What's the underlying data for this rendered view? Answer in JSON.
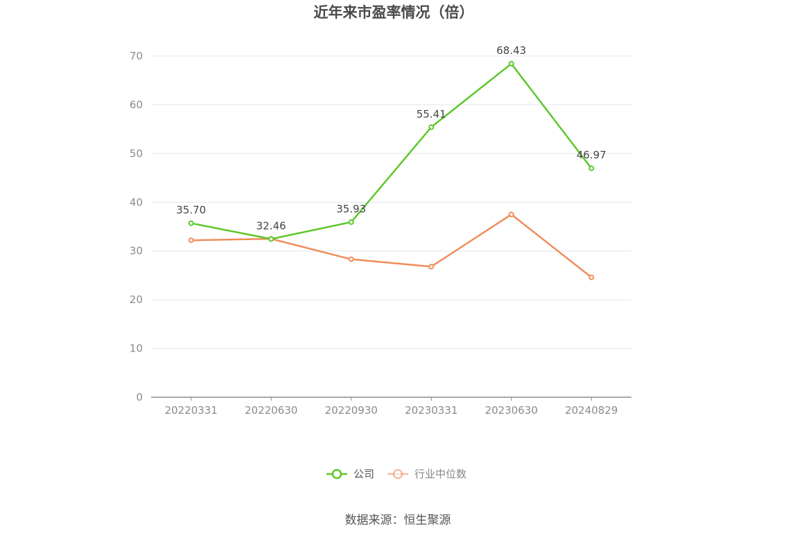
{
  "colors": {
    "company": "#5cc72a",
    "industry": "#f08c5a",
    "grid": "#e3e6ee",
    "axis": "#8c8c8c",
    "legend_company_text": "#555555",
    "legend_industry_text": "#888888"
  },
  "source": "数据来源：恒生聚源",
  "chart_data": {
    "type": "line",
    "title": "近年来市盈率情况（倍）",
    "xlabel": "",
    "ylabel": "",
    "ylim": [
      0,
      70
    ],
    "yticks": [
      0,
      10,
      20,
      30,
      40,
      50,
      60,
      70
    ],
    "categories": [
      "20220331",
      "20220630",
      "20220930",
      "20230331",
      "20230630",
      "20240829"
    ],
    "grid": true,
    "legend": "bottom-center",
    "series": [
      {
        "name": "公司",
        "values": [
          35.7,
          32.46,
          35.93,
          55.41,
          68.43,
          46.97
        ],
        "labels": [
          "35.70",
          "32.46",
          "35.93",
          "55.41",
          "68.43",
          "46.97"
        ]
      },
      {
        "name": "行业中位数",
        "values": [
          32.2,
          32.5,
          28.3,
          26.8,
          37.5,
          24.6
        ]
      }
    ]
  }
}
